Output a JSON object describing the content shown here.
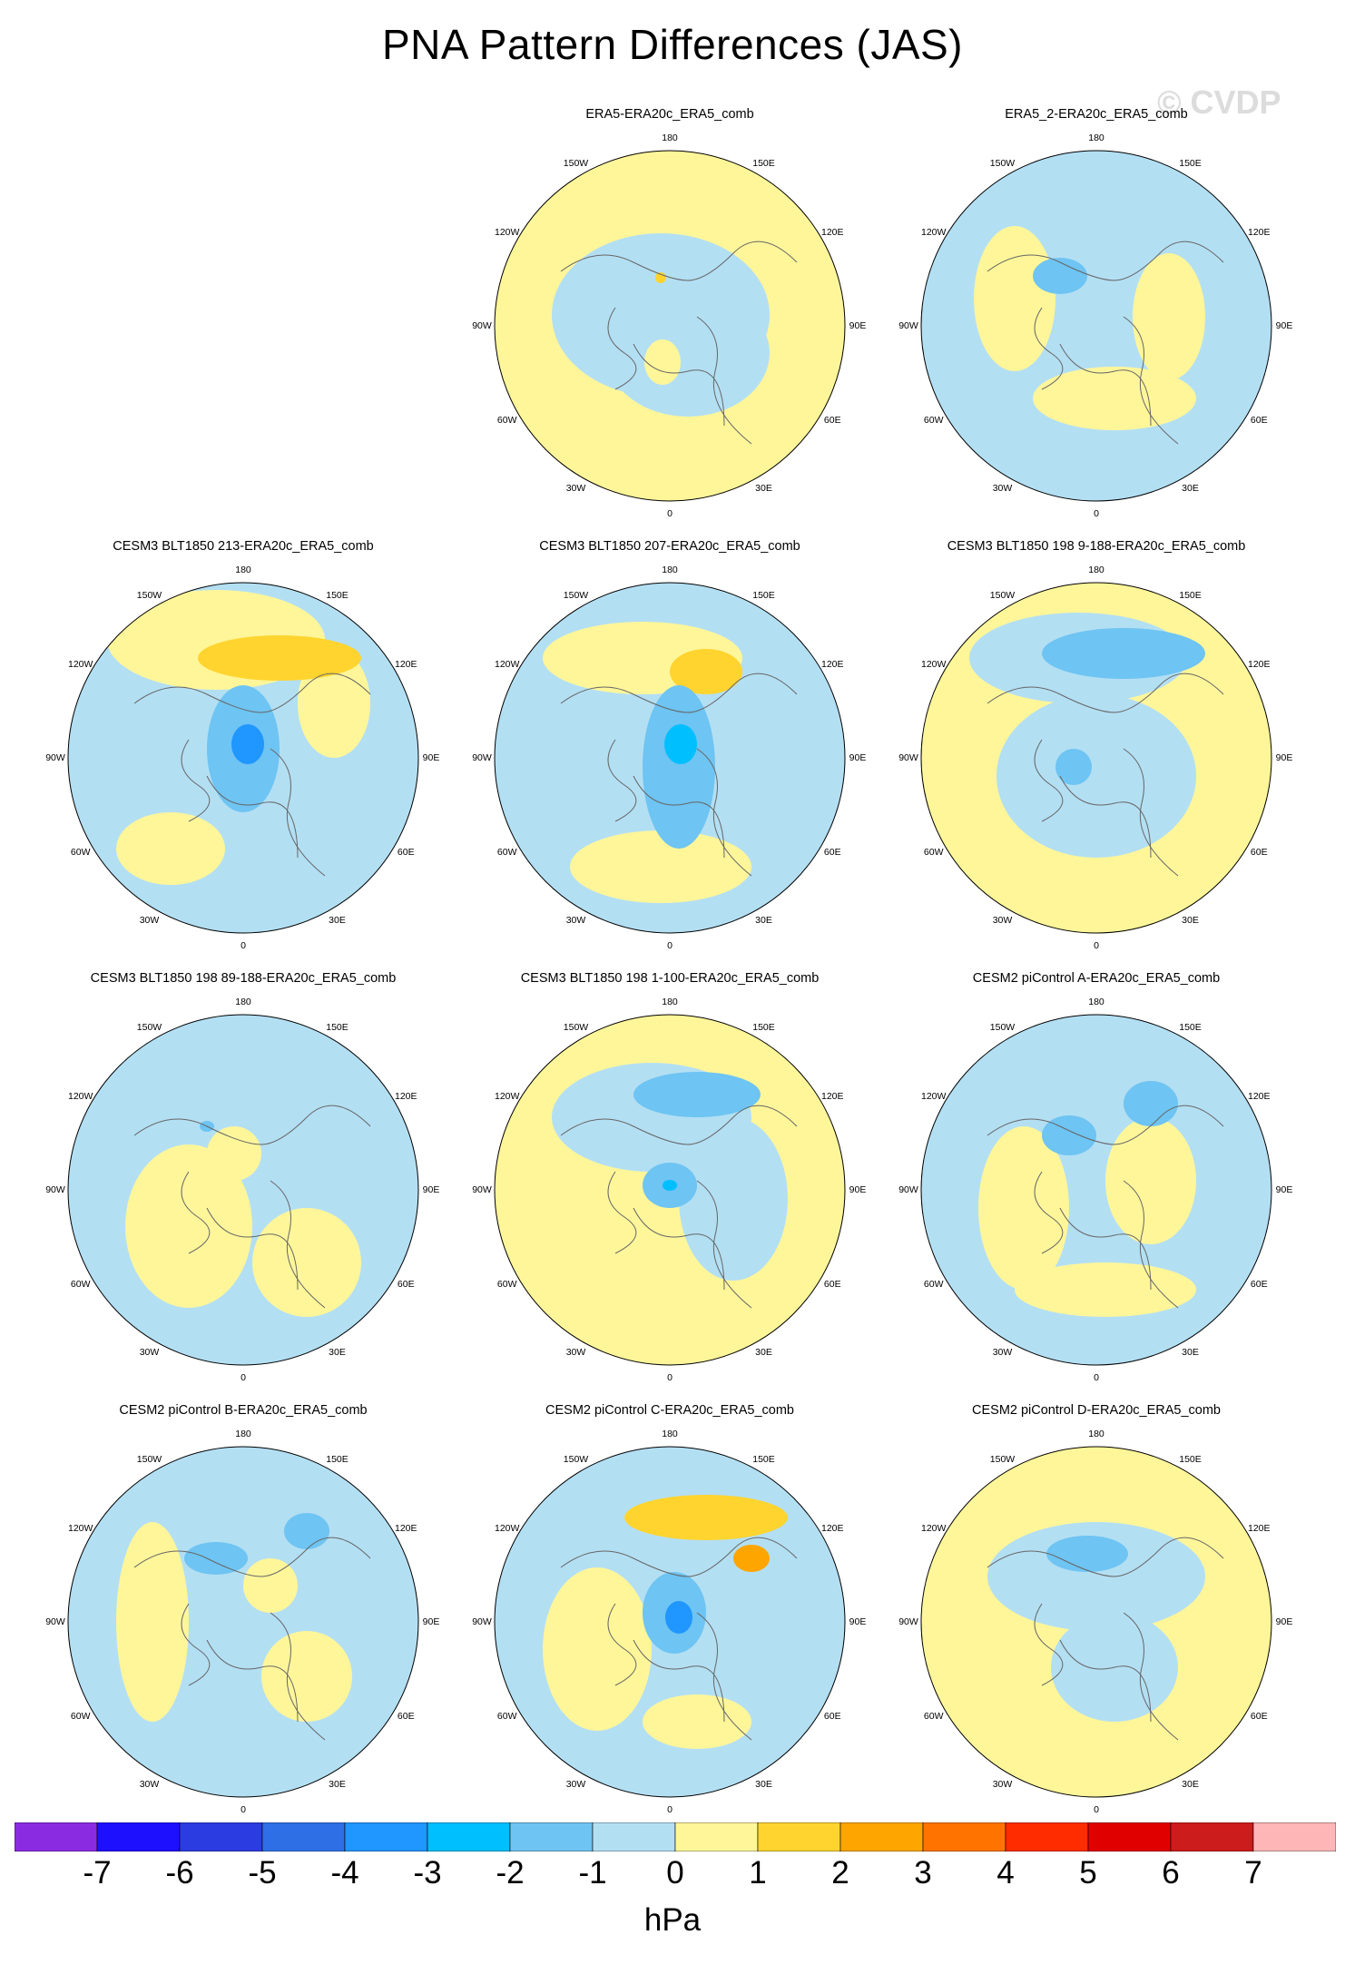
{
  "title": "PNA Pattern Differences (JAS)",
  "watermark": "© CVDP",
  "units": "hPa",
  "lon_labels": {
    "top": "180",
    "bottom": "0",
    "ul": "150W",
    "ur": "150E",
    "ml": "120W",
    "mr": "120E",
    "l": "90W",
    "r": "90E",
    "ll": "60W",
    "lr": "60E",
    "bl": "30W",
    "br": "30E"
  },
  "colorbar": {
    "colors": [
      "#8a2be2",
      "#1d10ff",
      "#2b3ce0",
      "#2e6fe6",
      "#2096ff",
      "#00bfff",
      "#6ec4f2",
      "#b3dff3",
      "#fff69a",
      "#ffd42e",
      "#ffa500",
      "#ff7400",
      "#ff2c00",
      "#e00000",
      "#cd1c1c",
      "#ffb6b6"
    ],
    "ticks": [
      "-7",
      "-6",
      "-5",
      "-4",
      "-3",
      "-2",
      "-1",
      "0",
      "1",
      "2",
      "3",
      "4",
      "5",
      "6",
      "7"
    ]
  },
  "panels": [
    {
      "title": "ERA5-ERA20c_ERA5_comb",
      "base": "#fff69a",
      "blobs": [
        [
          "#b3dff3",
          -10,
          -12,
          120,
          90
        ],
        [
          "#b3dff3",
          20,
          30,
          90,
          70
        ],
        [
          "#fff69a",
          -8,
          40,
          20,
          25
        ],
        [
          "#ffd42e",
          -10,
          -53,
          6,
          6
        ]
      ]
    },
    {
      "title": "ERA5_2-ERA20c_ERA5_comb",
      "base": "#b3dff3",
      "blobs": [
        [
          "#fff69a",
          -90,
          -30,
          45,
          80
        ],
        [
          "#fff69a",
          80,
          -10,
          40,
          70
        ],
        [
          "#fff69a",
          20,
          80,
          90,
          35
        ],
        [
          "#6ec4f2",
          -40,
          -55,
          30,
          20
        ]
      ]
    },
    {
      "title": "CESM3 BLT1850 213-ERA20c_ERA5_comb",
      "base": "#b3dff3",
      "blobs": [
        [
          "#fff69a",
          -30,
          -130,
          120,
          55
        ],
        [
          "#fff69a",
          -80,
          100,
          60,
          40
        ],
        [
          "#fff69a",
          100,
          -60,
          40,
          60
        ],
        [
          "#ffd42e",
          40,
          -110,
          90,
          25
        ],
        [
          "#6ec4f2",
          0,
          -10,
          40,
          70
        ],
        [
          "#2096ff",
          5,
          -15,
          18,
          22
        ]
      ]
    },
    {
      "title": "CESM3 BLT1850 207-ERA20c_ERA5_comb",
      "base": "#b3dff3",
      "blobs": [
        [
          "#fff69a",
          -30,
          -110,
          110,
          40
        ],
        [
          "#fff69a",
          -10,
          120,
          100,
          40
        ],
        [
          "#ffd42e",
          40,
          -95,
          40,
          25
        ],
        [
          "#6ec4f2",
          10,
          10,
          40,
          90
        ],
        [
          "#00bfff",
          12,
          -15,
          18,
          22
        ]
      ]
    },
    {
      "title": "CESM3 BLT1850 198 9-188-ERA20c_ERA5_comb",
      "base": "#fff69a",
      "blobs": [
        [
          "#b3dff3",
          0,
          20,
          110,
          90
        ],
        [
          "#b3dff3",
          -20,
          -110,
          120,
          50
        ],
        [
          "#6ec4f2",
          30,
          -115,
          90,
          28
        ],
        [
          "#6ec4f2",
          -25,
          10,
          20,
          20
        ]
      ]
    },
    {
      "title": "CESM3 BLT1850 198 89-188-ERA20c_ERA5_comb",
      "base": "#b3dff3",
      "blobs": [
        [
          "#fff69a",
          -60,
          40,
          70,
          90
        ],
        [
          "#fff69a",
          70,
          80,
          60,
          60
        ],
        [
          "#fff69a",
          -10,
          -40,
          30,
          30
        ],
        [
          "#6ec4f2",
          -40,
          -70,
          8,
          6
        ]
      ]
    },
    {
      "title": "CESM3 BLT1850 198 1-100-ERA20c_ERA5_comb",
      "base": "#fff69a",
      "blobs": [
        [
          "#b3dff3",
          -20,
          -80,
          110,
          60
        ],
        [
          "#b3dff3",
          70,
          10,
          60,
          90
        ],
        [
          "#6ec4f2",
          30,
          -105,
          70,
          25
        ],
        [
          "#6ec4f2",
          0,
          -5,
          30,
          25
        ],
        [
          "#00bfff",
          0,
          -5,
          8,
          6
        ]
      ]
    },
    {
      "title": "CESM2 piControl A-ERA20c_ERA5_comb",
      "base": "#b3dff3",
      "blobs": [
        [
          "#fff69a",
          -80,
          20,
          50,
          90
        ],
        [
          "#fff69a",
          60,
          -10,
          50,
          70
        ],
        [
          "#fff69a",
          10,
          110,
          100,
          30
        ],
        [
          "#6ec4f2",
          -30,
          -60,
          30,
          22
        ],
        [
          "#6ec4f2",
          60,
          -95,
          30,
          25
        ]
      ]
    },
    {
      "title": "CESM2 piControl B-ERA20c_ERA5_comb",
      "base": "#b3dff3",
      "blobs": [
        [
          "#fff69a",
          -100,
          0,
          40,
          110
        ],
        [
          "#fff69a",
          70,
          60,
          50,
          50
        ],
        [
          "#fff69a",
          30,
          -40,
          30,
          30
        ],
        [
          "#6ec4f2",
          -30,
          -70,
          35,
          18
        ],
        [
          "#6ec4f2",
          70,
          -100,
          25,
          20
        ]
      ]
    },
    {
      "title": "CESM2 piControl C-ERA20c_ERA5_comb",
      "base": "#b3dff3",
      "blobs": [
        [
          "#fff69a",
          -80,
          30,
          60,
          90
        ],
        [
          "#fff69a",
          30,
          110,
          60,
          30
        ],
        [
          "#ffd42e",
          40,
          -115,
          90,
          25
        ],
        [
          "#ffa500",
          90,
          -70,
          20,
          15
        ],
        [
          "#6ec4f2",
          5,
          -10,
          35,
          45
        ],
        [
          "#2096ff",
          10,
          -5,
          15,
          18
        ]
      ]
    },
    {
      "title": "CESM2 piControl D-ERA20c_ERA5_comb",
      "base": "#fff69a",
      "blobs": [
        [
          "#b3dff3",
          0,
          -50,
          120,
          60
        ],
        [
          "#b3dff3",
          20,
          50,
          70,
          60
        ],
        [
          "#6ec4f2",
          -10,
          -75,
          45,
          20
        ]
      ]
    }
  ]
}
